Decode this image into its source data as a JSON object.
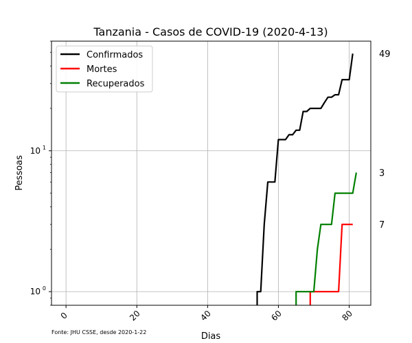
{
  "chart_data": {
    "type": "line",
    "title": "Tanzania - Casos de COVID-19 (2020-4-13)",
    "xlabel": "Dias",
    "ylabel": "Pessoas",
    "source_note": "Fonte: JHU CSSE, desde 2020-1-22",
    "xlim": [
      -4.1,
      86.1
    ],
    "ylim": [
      0.8,
      60
    ],
    "y_scale": "log",
    "grid": true,
    "legend_position": "top-left",
    "x_ticks": [
      0,
      20,
      40,
      60,
      80
    ],
    "x_tick_labels": [
      "0",
      "20",
      "40",
      "60",
      "80"
    ],
    "y_ticks": [
      1,
      10
    ],
    "y_tick_labels": [
      "10^0",
      "10^1"
    ],
    "right_labels": [
      "49",
      "7",
      "3"
    ],
    "series": [
      {
        "name": "Confirmados",
        "color": "#000000",
        "last_value": 49,
        "points": [
          [
            54,
            0.7
          ],
          [
            54,
            1
          ],
          [
            55,
            1
          ],
          [
            56,
            3
          ],
          [
            57,
            6
          ],
          [
            58,
            6
          ],
          [
            59,
            6
          ],
          [
            60,
            12
          ],
          [
            61,
            12
          ],
          [
            62,
            12
          ],
          [
            63,
            13
          ],
          [
            64,
            13
          ],
          [
            65,
            14
          ],
          [
            66,
            14
          ],
          [
            67,
            19
          ],
          [
            68,
            19
          ],
          [
            69,
            20
          ],
          [
            70,
            20
          ],
          [
            71,
            20
          ],
          [
            72,
            20
          ],
          [
            73,
            22
          ],
          [
            74,
            24
          ],
          [
            75,
            24
          ],
          [
            76,
            25
          ],
          [
            77,
            25
          ],
          [
            78,
            32
          ],
          [
            79,
            32
          ],
          [
            80,
            32
          ],
          [
            81,
            49
          ]
        ]
      },
      {
        "name": "Mortes",
        "color": "#ff0000",
        "last_value": 3,
        "points": [
          [
            69,
            0.7
          ],
          [
            69,
            1
          ],
          [
            70,
            1
          ],
          [
            71,
            1
          ],
          [
            72,
            1
          ],
          [
            73,
            1
          ],
          [
            74,
            1
          ],
          [
            75,
            1
          ],
          [
            76,
            1
          ],
          [
            77,
            1
          ],
          [
            78,
            3
          ],
          [
            79,
            3
          ],
          [
            80,
            3
          ],
          [
            81,
            3
          ]
        ]
      },
      {
        "name": "Recuperados",
        "color": "#008000",
        "last_value": 7,
        "points": [
          [
            65,
            0.7
          ],
          [
            65,
            1
          ],
          [
            66,
            1
          ],
          [
            67,
            1
          ],
          [
            68,
            1
          ],
          [
            69,
            1
          ],
          [
            70,
            1
          ],
          [
            71,
            2
          ],
          [
            72,
            3
          ],
          [
            73,
            3
          ],
          [
            74,
            3
          ],
          [
            75,
            3
          ],
          [
            76,
            5
          ],
          [
            77,
            5
          ],
          [
            78,
            5
          ],
          [
            79,
            5
          ],
          [
            80,
            5
          ],
          [
            81,
            5
          ],
          [
            82,
            7
          ]
        ]
      }
    ]
  }
}
